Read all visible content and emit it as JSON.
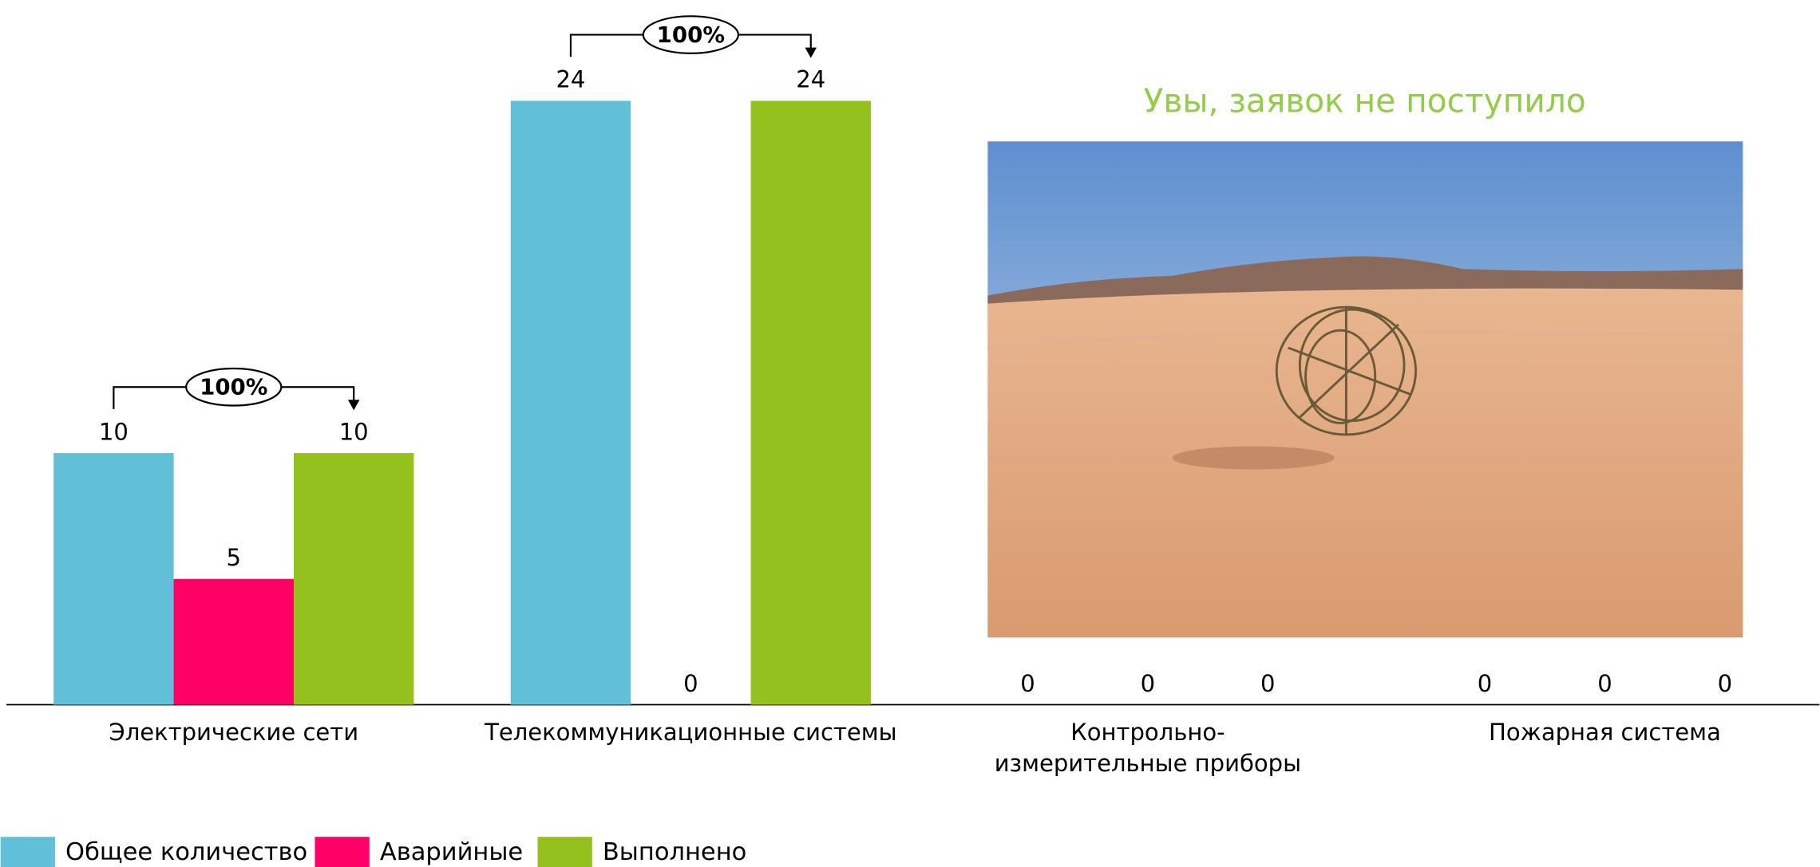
{
  "chart_data": {
    "type": "bar",
    "categories": [
      "Электрические сети",
      "Телекоммуникационные системы",
      "Контрольно-измерительные приборы",
      "Пожарная система"
    ],
    "series": [
      {
        "name": "Общее количество",
        "color": "#62bfd8",
        "values": [
          10,
          24,
          0,
          0
        ]
      },
      {
        "name": "Аварийные",
        "color": "#ff0066",
        "values": [
          5,
          0,
          0,
          0
        ]
      },
      {
        "name": "Выполнено",
        "color": "#95c11f",
        "values": [
          10,
          24,
          0,
          0
        ]
      }
    ],
    "annotations": [
      "100%",
      "100%"
    ],
    "no_data_message": "Увы, заявок не поступило",
    "legend": "bottom-left"
  }
}
